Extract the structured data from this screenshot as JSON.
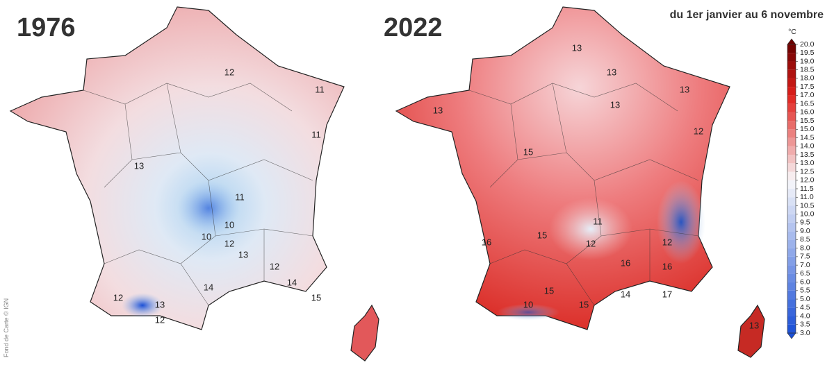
{
  "title_left": "1976",
  "title_right": "2022",
  "subtitle": "du 1er janvier au 6 novembre",
  "credit": "Fond de Carte © IGN",
  "colorbar": {
    "unit": "°C",
    "ticks": [
      {
        "value": 3,
        "label": "3.0"
      },
      {
        "value": 3.5,
        "label": "3.5"
      },
      {
        "value": 4,
        "label": "4.0"
      },
      {
        "value": 4.5,
        "label": "4.5"
      },
      {
        "value": 5,
        "label": "5.0"
      },
      {
        "value": 5.5,
        "label": "5.5"
      },
      {
        "value": 6,
        "label": "6.0"
      },
      {
        "value": 6.5,
        "label": "6.5"
      },
      {
        "value": 7,
        "label": "7.0"
      },
      {
        "value": 7.5,
        "label": "7.5"
      },
      {
        "value": 8,
        "label": "8.0"
      },
      {
        "value": 8.5,
        "label": "8.5"
      },
      {
        "value": 9,
        "label": "9.0"
      },
      {
        "value": 9.5,
        "label": "9.5"
      },
      {
        "value": 10,
        "label": "10.0"
      },
      {
        "value": 10.5,
        "label": "10.5"
      },
      {
        "value": 11,
        "label": "11.0"
      },
      {
        "value": 11.5,
        "label": "11.5"
      },
      {
        "value": 12,
        "label": "12.0"
      },
      {
        "value": 12.5,
        "label": "12.5"
      },
      {
        "value": 13,
        "label": "13.0"
      },
      {
        "value": 13.5,
        "label": "13.5"
      },
      {
        "value": 14,
        "label": "14.0"
      },
      {
        "value": 14.5,
        "label": "14.5"
      },
      {
        "value": 15,
        "label": "15.0"
      },
      {
        "value": 15.5,
        "label": "15.5"
      },
      {
        "value": 16,
        "label": "16.0"
      },
      {
        "value": 16.5,
        "label": "16.5"
      },
      {
        "value": 17,
        "label": "17.0"
      },
      {
        "value": 17.5,
        "label": "17.5"
      },
      {
        "value": 18,
        "label": "18.0"
      },
      {
        "value": 18.5,
        "label": "18.5"
      },
      {
        "value": 19,
        "label": "19.0"
      },
      {
        "value": 19.5,
        "label": "19.5"
      },
      {
        "value": 20,
        "label": "20.0"
      }
    ]
  },
  "contours_1976": [
    12,
    11,
    13,
    10,
    10,
    12,
    11,
    13,
    12,
    14,
    14,
    15,
    12,
    13,
    12,
    11
  ],
  "contours_2022": [
    13,
    13,
    13,
    13,
    13,
    12,
    15,
    15,
    16,
    16,
    12,
    11,
    12,
    16,
    15,
    10,
    15,
    14,
    13,
    17
  ]
}
